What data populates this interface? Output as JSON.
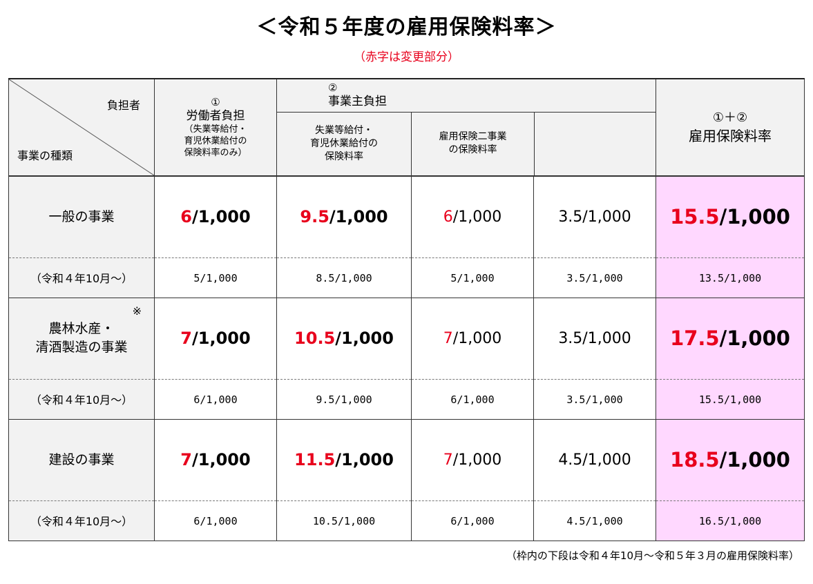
{
  "title": "＜令和５年度の雇用保険料率＞",
  "subtitle": "（赤字は変更部分）",
  "header": {
    "diag_top": "負担者",
    "diag_bottom": "事業の種類",
    "worker": {
      "mark": "①",
      "label": "労働者負担",
      "note_lines": [
        "（失業等給付・",
        "育児休業給付の",
        "保険料率のみ）"
      ]
    },
    "employer": {
      "mark": "②",
      "label": "事業主負担",
      "sub1_lines": [
        "失業等給付・",
        "育児休業給付の",
        "保険料率"
      ],
      "sub2_lines": [
        "雇用保険二事業",
        "の保険料率"
      ]
    },
    "total": {
      "mark": "①＋②",
      "label": "雇用保険料率"
    }
  },
  "rows": [
    {
      "kind_lines": [
        "一般の事業"
      ],
      "mark": "",
      "worker": {
        "red": "6",
        "rest": "/1,000"
      },
      "employer": {
        "red": "9.5",
        "rest": "/1,000"
      },
      "emp_benefit": {
        "red": "6",
        "rest": "/1,000"
      },
      "two_projects": "3.5/1,000",
      "total": {
        "red": "15.5",
        "rest": "/1,000"
      },
      "prev": {
        "label": "（令和４年10月～）",
        "worker": "5/1,000",
        "employer": "8.5/1,000",
        "emp_benefit": "5/1,000",
        "two_projects": "3.5/1,000",
        "total": "13.5/1,000"
      }
    },
    {
      "kind_lines": [
        "農林水産・",
        "清酒製造の事業"
      ],
      "mark": "※",
      "worker": {
        "red": "7",
        "rest": "/1,000"
      },
      "employer": {
        "red": "10.5",
        "rest": "/1,000"
      },
      "emp_benefit": {
        "red": "7",
        "rest": "/1,000"
      },
      "two_projects": "3.5/1,000",
      "total": {
        "red": "17.5",
        "rest": "/1,000"
      },
      "prev": {
        "label": "（令和４年10月～）",
        "worker": "6/1,000",
        "employer": "9.5/1,000",
        "emp_benefit": "6/1,000",
        "two_projects": "3.5/1,000",
        "total": "15.5/1,000"
      }
    },
    {
      "kind_lines": [
        "建設の事業"
      ],
      "mark": "",
      "worker": {
        "red": "7",
        "rest": "/1,000"
      },
      "employer": {
        "red": "11.5",
        "rest": "/1,000"
      },
      "emp_benefit": {
        "red": "7",
        "rest": "/1,000"
      },
      "two_projects": "4.5/1,000",
      "total": {
        "red": "18.5",
        "rest": "/1,000"
      },
      "prev": {
        "label": "（令和４年10月～）",
        "worker": "6/1,000",
        "employer": "10.5/1,000",
        "emp_benefit": "6/1,000",
        "two_projects": "4.5/1,000",
        "total": "16.5/1,000"
      }
    }
  ],
  "footnote": "（枠内の下段は令和４年10月～令和５年３月の雇用保険料率）",
  "colors": {
    "red": "#e8001c",
    "header_bg": "#f2f2f2",
    "total_bg": "#ffd8ff"
  }
}
